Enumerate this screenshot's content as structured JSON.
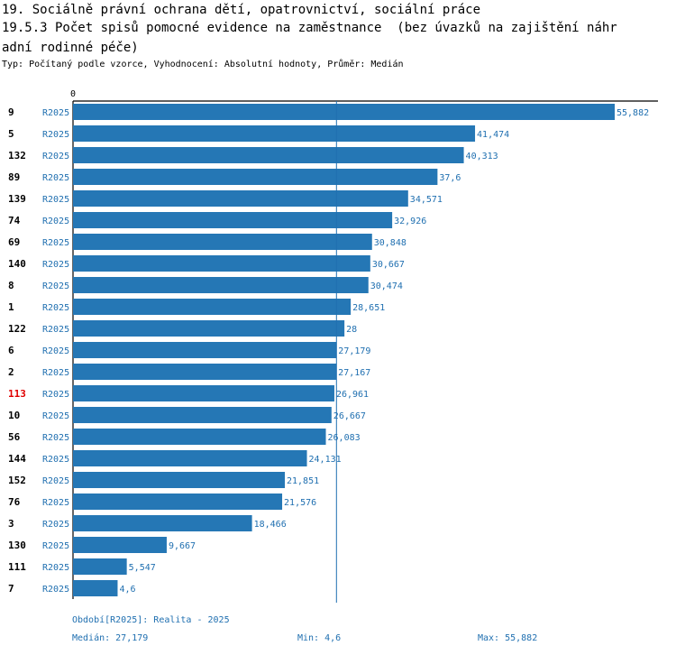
{
  "title_line1": "19. Sociálně právní ochrana dětí, opatrovnictví, sociální práce",
  "title_line2": "19.5.3 Počet spisů pomocné evidence na zaměstnance  (bez úvazků na zajištění náhr",
  "title_line3": "adní rodinné péče)",
  "subtitle": "Typ: Počítaný podle vzorce, Vyhodnocení: Absolutní hodnoty, Průměr: Medián",
  "chart_data": {
    "type": "bar",
    "orientation": "horizontal",
    "axis_zero_label": "0",
    "series_label": "R2025",
    "bar_color": "#2577b5",
    "median_line_color": "#1f6fb0",
    "highlight_color": "#e00000",
    "xlim": [
      0,
      55.882
    ],
    "median": 27.179,
    "categories": [
      "9",
      "5",
      "132",
      "89",
      "139",
      "74",
      "69",
      "140",
      "8",
      "1",
      "122",
      "6",
      "2",
      "113",
      "10",
      "56",
      "144",
      "152",
      "76",
      "3",
      "130",
      "111",
      "7"
    ],
    "values": [
      55.882,
      41.474,
      40.313,
      37.6,
      34.571,
      32.926,
      30.848,
      30.667,
      30.474,
      28.651,
      28,
      27.179,
      27.167,
      26.961,
      26.667,
      26.083,
      24.131,
      21.851,
      21.576,
      18.466,
      9.667,
      5.547,
      4.6
    ],
    "value_labels": [
      "55,882",
      "41,474",
      "40,313",
      "37,6",
      "34,571",
      "32,926",
      "30,848",
      "30,667",
      "30,474",
      "28,651",
      "28",
      "27,179",
      "27,167",
      "26,961",
      "26,667",
      "26,083",
      "24,131",
      "21,851",
      "21,576",
      "18,466",
      "9,667",
      "5,547",
      "4,6"
    ],
    "highlighted_category": "113"
  },
  "footer": {
    "period": "Období[R2025]: Realita - 2025",
    "median": "Medián: 27,179",
    "min": "Min: 4,6",
    "max": "Max: 55,882"
  }
}
